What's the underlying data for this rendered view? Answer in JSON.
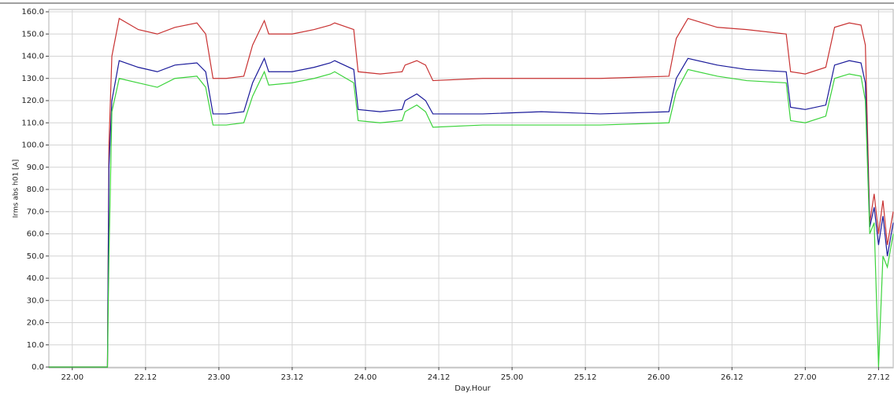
{
  "chart_data": {
    "type": "line",
    "x_label": "Day.Hour",
    "y_label": "Irms abs h01 [A]",
    "x": [
      21.84,
      22.24,
      22.25,
      22.27,
      22.32,
      22.45,
      22.58,
      22.7,
      22.85,
      22.91,
      22.96,
      23.05,
      23.17,
      23.23,
      23.31,
      23.34,
      23.5,
      23.65,
      23.76,
      23.79,
      23.92,
      23.95,
      24.1,
      24.25,
      24.27,
      24.35,
      24.41,
      24.46,
      24.8,
      25.2,
      25.6,
      26.07,
      26.12,
      26.2,
      26.4,
      26.6,
      26.87,
      26.9,
      27.0,
      27.14,
      27.2,
      27.3,
      27.38,
      27.41,
      27.44,
      27.47,
      27.5,
      27.53,
      27.56,
      27.6
    ],
    "series": [
      {
        "color": "#c83232",
        "values": [
          0,
          0,
          100,
          140,
          157,
          152,
          150,
          153,
          155,
          150,
          130,
          130,
          131,
          145,
          156,
          150,
          150,
          152,
          154,
          155,
          152,
          133,
          132,
          133,
          136,
          138,
          136,
          129,
          130,
          130,
          130,
          131,
          148,
          157,
          153,
          152,
          150,
          133,
          132,
          135,
          153,
          155,
          154,
          145,
          65,
          78,
          60,
          75,
          55,
          70
        ]
      },
      {
        "color": "#1a1a9a",
        "values": [
          0,
          0,
          90,
          120,
          138,
          135,
          133,
          136,
          137,
          133,
          114,
          114,
          115,
          128,
          139,
          133,
          133,
          135,
          137,
          138,
          134,
          116,
          115,
          116,
          120,
          123,
          120,
          114,
          114,
          115,
          114,
          115,
          130,
          139,
          136,
          134,
          133,
          117,
          116,
          118,
          136,
          138,
          137,
          128,
          63,
          72,
          55,
          68,
          50,
          65
        ]
      },
      {
        "color": "#3bd33b",
        "values": [
          0,
          0,
          50,
          115,
          130,
          128,
          126,
          130,
          131,
          126,
          109,
          109,
          110,
          122,
          133,
          127,
          128,
          130,
          132,
          133,
          128,
          111,
          110,
          111,
          115,
          118,
          115,
          108,
          109,
          109,
          109,
          110,
          124,
          134,
          131,
          129,
          128,
          111,
          110,
          113,
          130,
          132,
          131,
          120,
          60,
          65,
          0,
          50,
          45,
          60
        ]
      }
    ],
    "xlim": [
      21.84,
      27.6
    ],
    "xticks": [
      {
        "value": 22,
        "label": "22.00"
      },
      {
        "value": 22.5,
        "label": "22.12"
      },
      {
        "value": 23,
        "label": "23.00"
      },
      {
        "value": 23.5,
        "label": "23.12"
      },
      {
        "value": 24,
        "label": "24.00"
      },
      {
        "value": 24.5,
        "label": "24.12"
      },
      {
        "value": 25,
        "label": "25.00"
      },
      {
        "value": 25.5,
        "label": "25.12"
      },
      {
        "value": 26,
        "label": "26.00"
      },
      {
        "value": 26.5,
        "label": "26.12"
      },
      {
        "value": 27,
        "label": "27.00"
      },
      {
        "value": 27.5,
        "label": "27.12"
      }
    ],
    "ylim": [
      0,
      160
    ],
    "yticks": [
      {
        "value": 0,
        "label": "0.0"
      },
      {
        "value": 10,
        "label": "10.0"
      },
      {
        "value": 20,
        "label": "20.0"
      },
      {
        "value": 30,
        "label": "30.0"
      },
      {
        "value": 40,
        "label": "40.0"
      },
      {
        "value": 50,
        "label": "50.0"
      },
      {
        "value": 60,
        "label": "60.0"
      },
      {
        "value": 70,
        "label": "70.0"
      },
      {
        "value": 80,
        "label": "80.0"
      },
      {
        "value": 90,
        "label": "90.0"
      },
      {
        "value": 100,
        "label": "100.0"
      },
      {
        "value": 110,
        "label": "110.0"
      },
      {
        "value": 120,
        "label": "120.0"
      },
      {
        "value": 130,
        "label": "130.0"
      },
      {
        "value": 140,
        "label": "140.0"
      },
      {
        "value": 150,
        "label": "150.0"
      },
      {
        "value": 160,
        "label": "160.0"
      }
    ],
    "grid": true
  }
}
